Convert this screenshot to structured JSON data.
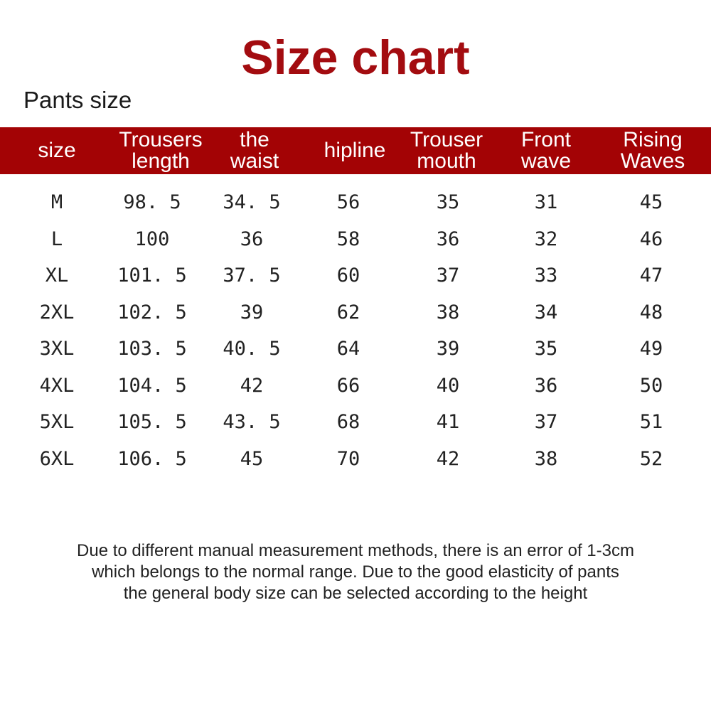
{
  "title": "Size chart",
  "subtitle": "Pants size",
  "header_color": "#a30305",
  "title_color": "#a30c10",
  "columns": [
    {
      "line1": "size",
      "line2": ""
    },
    {
      "line1": "Trousers",
      "line2": "length"
    },
    {
      "line1": "the",
      "line2": "waist"
    },
    {
      "line1": "hipline",
      "line2": ""
    },
    {
      "line1": "Trouser",
      "line2": "mouth"
    },
    {
      "line1": "Front",
      "line2": "wave"
    },
    {
      "line1": "Rising",
      "line2": "Waves"
    }
  ],
  "rows": [
    [
      "M",
      "98. 5",
      "34. 5",
      "56",
      "35",
      "31",
      "45"
    ],
    [
      "L",
      "100",
      "36",
      "58",
      "36",
      "32",
      "46"
    ],
    [
      "XL",
      "101. 5",
      "37. 5",
      "60",
      "37",
      "33",
      "47"
    ],
    [
      "2XL",
      "102. 5",
      "39",
      "62",
      "38",
      "34",
      "48"
    ],
    [
      "3XL",
      "103. 5",
      "40. 5",
      "64",
      "39",
      "35",
      "49"
    ],
    [
      "4XL",
      "104. 5",
      "42",
      "66",
      "40",
      "36",
      "50"
    ],
    [
      "5XL",
      "105. 5",
      "43. 5",
      "68",
      "41",
      "37",
      "51"
    ],
    [
      "6XL",
      "106. 5",
      "45",
      "70",
      "42",
      "38",
      "52"
    ]
  ],
  "note": [
    "Due to different manual measurement methods, there is an error of 1-3cm",
    "which belongs to the normal range. Due to the good elasticity of pants",
    "the general body size can be selected according to the height"
  ]
}
